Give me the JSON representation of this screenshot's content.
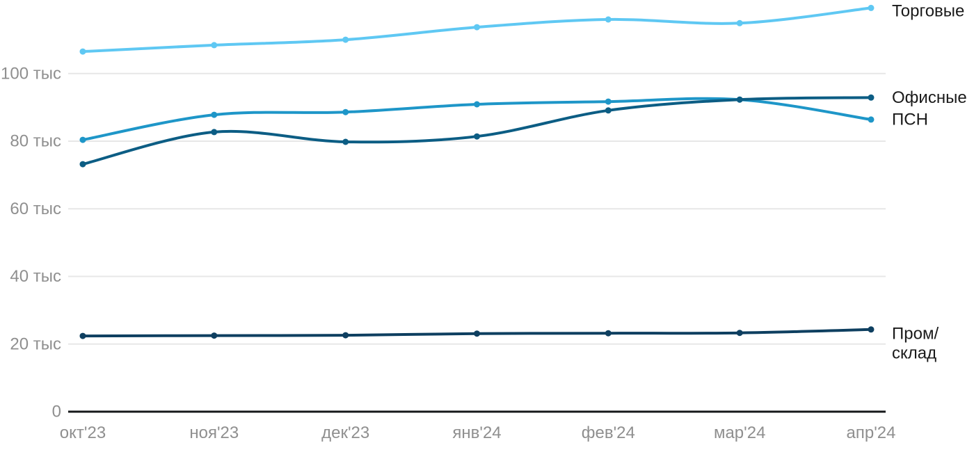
{
  "chart_data": {
    "type": "line",
    "title": "",
    "xlabel": "",
    "ylabel": "",
    "grid": "horizontal",
    "legend_position": "right-of-line-ends",
    "categories": [
      "окт'23",
      "ноя'23",
      "дек'23",
      "янв'24",
      "фев'24",
      "мар'24",
      "апр'24"
    ],
    "y_ticks": [
      {
        "value": 0,
        "label": "0"
      },
      {
        "value": 20000,
        "label": "20 тыс"
      },
      {
        "value": 40000,
        "label": "40 тыс"
      },
      {
        "value": 60000,
        "label": "60 тыс"
      },
      {
        "value": 80000,
        "label": "80 тыс"
      },
      {
        "value": 100000,
        "label": "100 тыс"
      }
    ],
    "ylim": [
      0,
      122000
    ],
    "series": [
      {
        "id": "torgovye",
        "name": "Торговые",
        "label_lines": [
          "Торговые"
        ],
        "color": "#5fc8f3",
        "values": [
          106500,
          108400,
          110000,
          113700,
          116000,
          114900,
          119400
        ]
      },
      {
        "id": "psn",
        "name": "ПСН",
        "label_lines": [
          "ПСН"
        ],
        "color": "#1e96c8",
        "values": [
          80400,
          87800,
          88600,
          90900,
          91700,
          92300,
          86400
        ]
      },
      {
        "id": "ofisnye",
        "name": "Офисные",
        "label_lines": [
          "Офисные"
        ],
        "color": "#0c5d84",
        "values": [
          73200,
          82700,
          79800,
          81400,
          89100,
          92300,
          92900
        ]
      },
      {
        "id": "prom-sklad",
        "name": "Пром/склад",
        "label_lines": [
          "Пром/",
          "склад"
        ],
        "color": "#0e3f60",
        "values": [
          22400,
          22500,
          22600,
          23100,
          23200,
          23300,
          24300
        ]
      }
    ],
    "colors": {
      "grid": "#e7e7e7",
      "axis": "#16181a",
      "tick_label": "#8f8f8f",
      "series_label": "#1a1a1a",
      "background": "#ffffff"
    }
  }
}
